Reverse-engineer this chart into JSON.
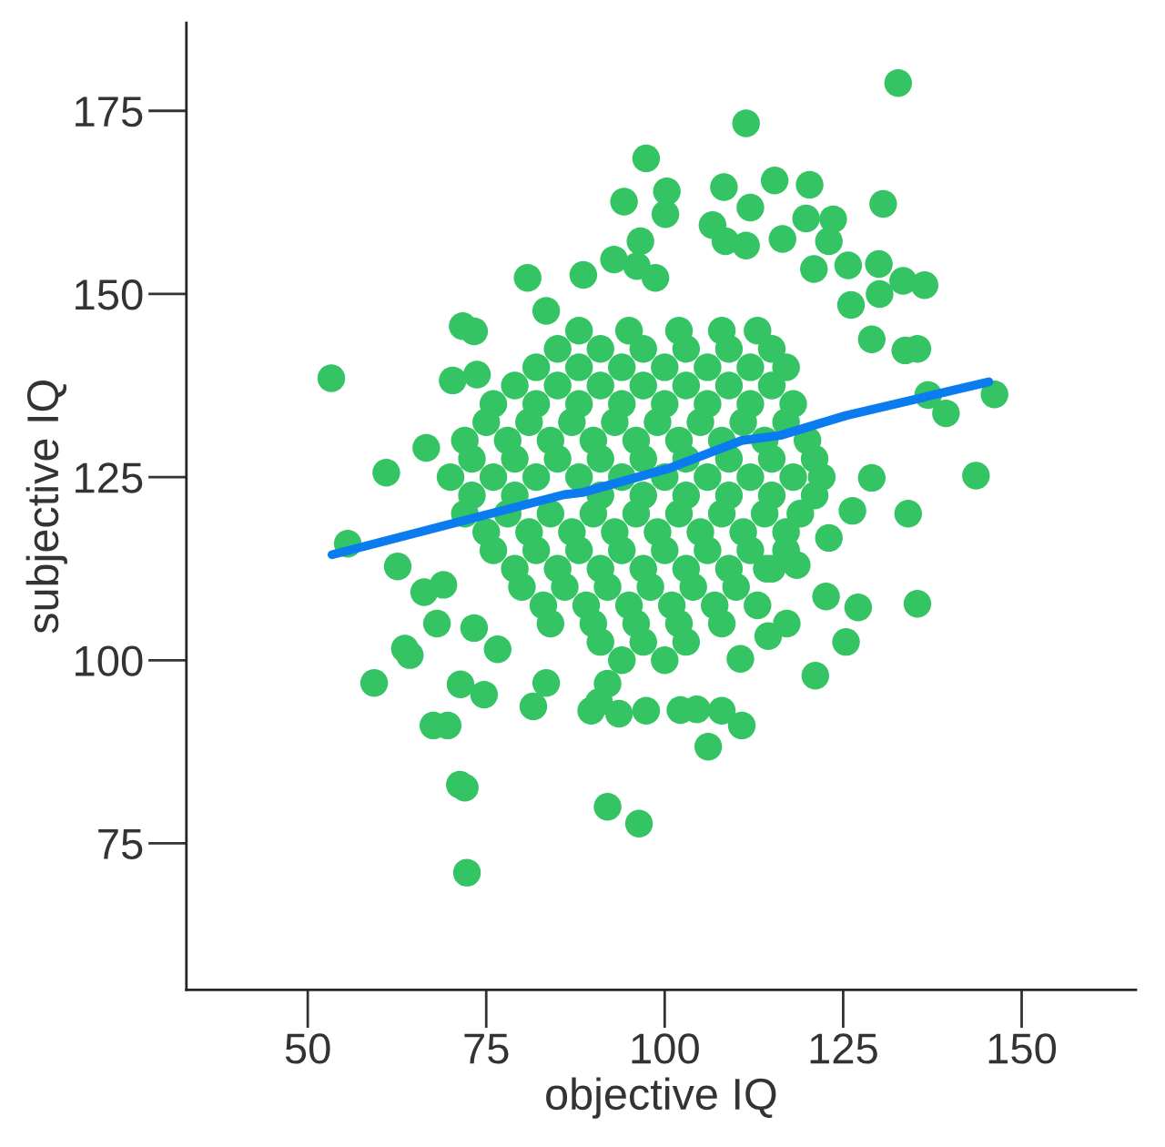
{
  "chart_data": {
    "type": "scatter",
    "xlabel": "objective IQ",
    "ylabel": "subjective IQ",
    "xlim": [
      33,
      166
    ],
    "ylim": [
      55,
      187
    ],
    "xticks": [
      50,
      75,
      100,
      125,
      150
    ],
    "yticks": [
      75,
      100,
      125,
      150,
      175
    ],
    "grid": false,
    "legend": false,
    "series": [
      {
        "color": "#34c463",
        "marker": "circle",
        "x": [
          53.3,
          55.6,
          59.3,
          61.0,
          62.6,
          63.6,
          64.3,
          66.3,
          66.6,
          67.6,
          68.1,
          69.6,
          69.0,
          71.3,
          72.0,
          72.3,
          71.7,
          73.3,
          73.7,
          70.3,
          71.4,
          74.7,
          73.3,
          76.6,
          80.8,
          83.4,
          81.6,
          83.4,
          88.6,
          92.0,
          96.4,
          97.4,
          94.3,
          96.6,
          100.3,
          100.1,
          108.3,
          111.4,
          112.0,
          115.4,
          120.3,
          132.7,
          130.6,
          130.0,
          130.1,
          133.4,
          136.4,
          133.7,
          135.4,
          139.4,
          143.6,
          146.2,
          134.1,
          135.4,
          127.1,
          125.4,
          121.1,
          122.6,
          117.1,
          114.5,
          110.6,
          110.8,
          106.1,
          108.0,
          97.4,
          93.6,
          89.7,
          90.8,
          92.0,
          102.2,
          104.5,
          123.0,
          126.3,
          129.0,
          136.9,
          129.0,
          126.1,
          125.7,
          123.0,
          123.6,
          119.8,
          120.9,
          116.5,
          111.4,
          108.5,
          106.7,
          98.7,
          96.1,
          92.9,
          118.5,
          114.3,
          88,
          95,
          102,
          108,
          113,
          82,
          88,
          94,
          100,
          106,
          112,
          117,
          76,
          82,
          88,
          94,
          100,
          106,
          112,
          118,
          72,
          78,
          84,
          90,
          96,
          102,
          108,
          114,
          120,
          70,
          76,
          82,
          88,
          94,
          100,
          106,
          112,
          118,
          122,
          72,
          78,
          84,
          90,
          96,
          102,
          108,
          114,
          119,
          76,
          82,
          88,
          94,
          100,
          106,
          112,
          117,
          80,
          86,
          92,
          98,
          104,
          110,
          84,
          90,
          96,
          102,
          108,
          94,
          100,
          85,
          91,
          97,
          103,
          109,
          115,
          79,
          85,
          91,
          97,
          103,
          109,
          115,
          75,
          81,
          87,
          93,
          99,
          105,
          111,
          117,
          73,
          79,
          85,
          91,
          97,
          103,
          109,
          115,
          121,
          73,
          79,
          85,
          91,
          97,
          103,
          109,
          115,
          121,
          75,
          81,
          87,
          93,
          99,
          105,
          111,
          117,
          79,
          85,
          91,
          97,
          103,
          109,
          115,
          83,
          89,
          95,
          101,
          107,
          113,
          91,
          97,
          103
        ],
        "values": [
          138.5,
          115.9,
          96.9,
          125.6,
          112.8,
          101.6,
          100.7,
          109.3,
          129.0,
          91.1,
          105.0,
          91.1,
          110.3,
          83.0,
          82.6,
          71.0,
          145.6,
          144.9,
          139.0,
          138.2,
          96.7,
          95.3,
          104.4,
          101.5,
          152.2,
          147.7,
          93.7,
          96.9,
          152.6,
          80.0,
          77.7,
          168.5,
          162.6,
          157.2,
          164.0,
          160.9,
          164.6,
          173.3,
          161.8,
          165.5,
          164.9,
          178.8,
          162.3,
          154.1,
          150.0,
          151.8,
          151.2,
          142.3,
          142.5,
          133.7,
          125.2,
          136.3,
          120.0,
          107.7,
          107.2,
          102.5,
          97.9,
          108.7,
          105.0,
          103.3,
          100.2,
          91.1,
          88.2,
          93.1,
          93.1,
          92.7,
          93.1,
          94.3,
          96.8,
          93.2,
          93.3,
          116.7,
          120.4,
          124.9,
          136.2,
          143.8,
          148.5,
          153.9,
          157.2,
          160.2,
          160.3,
          153.4,
          157.5,
          156.6,
          157.2,
          159.4,
          152.2,
          153.8,
          154.7,
          113.0,
          112.5,
          145,
          145,
          145,
          145,
          145,
          140,
          140,
          140,
          140,
          140,
          140,
          140,
          135,
          135,
          135,
          135,
          135,
          135,
          135,
          135,
          130,
          130,
          130,
          130,
          130,
          130,
          130,
          130,
          130,
          125,
          125,
          125,
          125,
          125,
          125,
          125,
          125,
          125,
          125,
          120,
          120,
          120,
          120,
          120,
          120,
          120,
          120,
          120,
          115,
          115,
          115,
          115,
          115,
          115,
          115,
          115,
          110,
          110,
          110,
          110,
          110,
          110,
          105,
          105,
          105,
          105,
          105,
          100,
          100,
          142.5,
          142.5,
          142.5,
          142.5,
          142.5,
          142.5,
          137.5,
          137.5,
          137.5,
          137.5,
          137.5,
          137.5,
          137.5,
          132.5,
          132.5,
          132.5,
          132.5,
          132.5,
          132.5,
          132.5,
          132.5,
          127.5,
          127.5,
          127.5,
          127.5,
          127.5,
          127.5,
          127.5,
          127.5,
          127.5,
          122.5,
          122.5,
          null,
          122.5,
          122.5,
          122.5,
          122.5,
          122.5,
          122.5,
          117.5,
          117.5,
          117.5,
          117.5,
          117.5,
          117.5,
          117.5,
          117.5,
          112.5,
          112.5,
          112.5,
          112.5,
          112.5,
          112.5,
          112.5,
          107.5,
          107.5,
          107.5,
          107.5,
          107.5,
          107.5,
          102.5,
          102.5,
          102.5
        ]
      },
      {
        "type": "line",
        "color": "#0a7cf0",
        "line_style": "solid",
        "x": [
          53.4,
          85.9,
          88.5,
          100.6,
          110.8,
          116.2,
          125.4,
          145.4
        ],
        "values": [
          114.4,
          122.6,
          122.9,
          126.2,
          130.0,
          130.7,
          133.4,
          138.0
        ]
      }
    ]
  }
}
